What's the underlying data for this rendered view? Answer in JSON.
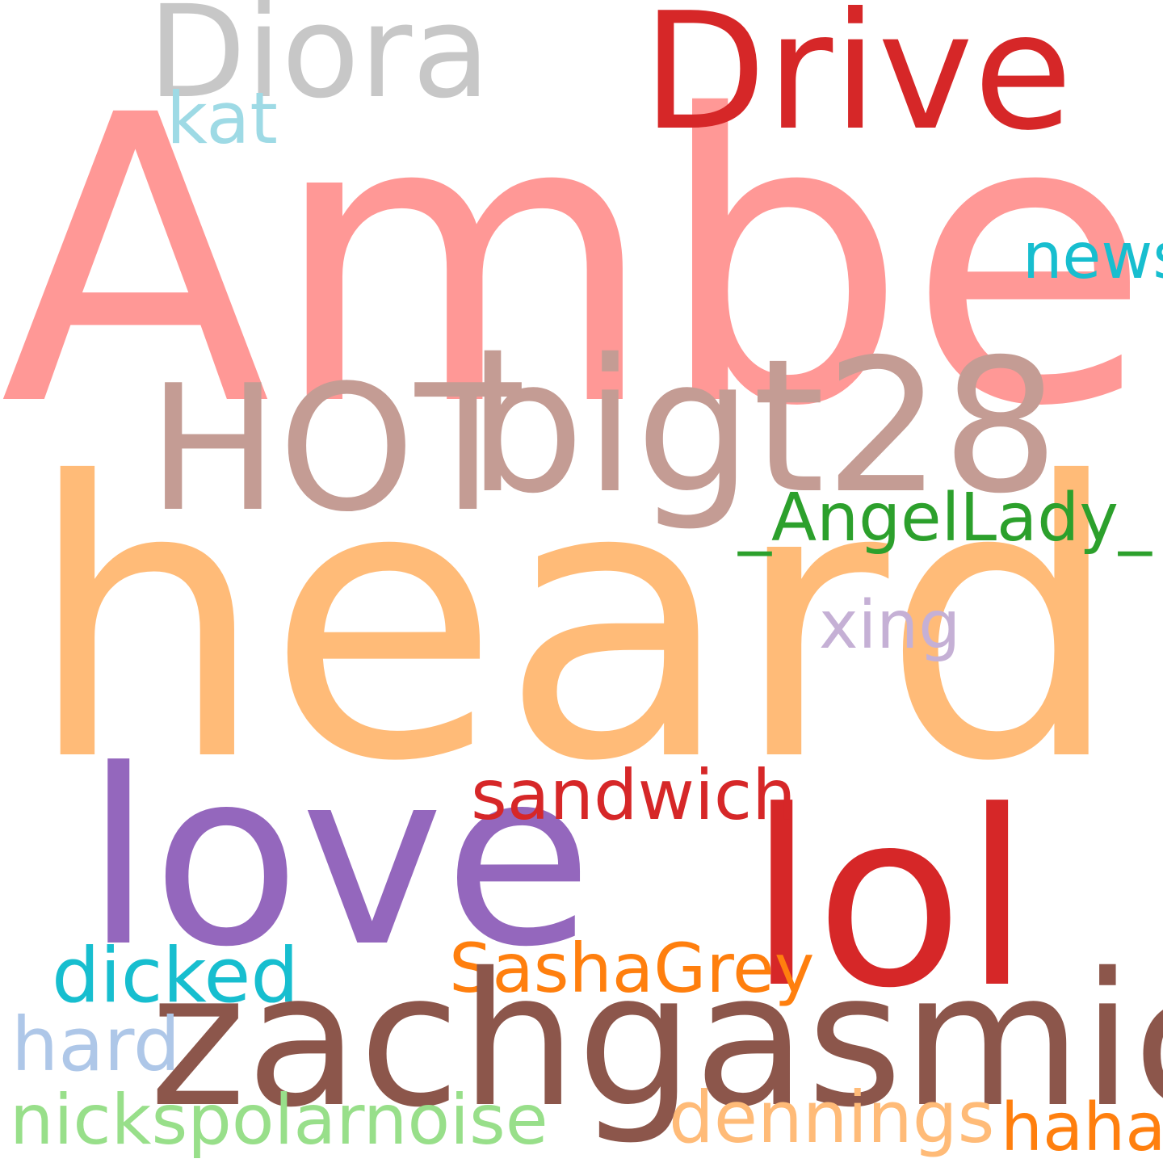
{
  "words": [
    {
      "text": "Amber",
      "color": "#ff9896"
    },
    {
      "text": "heard",
      "color": "#ffbb78"
    },
    {
      "text": "Drive",
      "color": "#d62728"
    },
    {
      "text": "Diora",
      "color": "#c7c7c7"
    },
    {
      "text": "kat",
      "color": "#9edae5"
    },
    {
      "text": "news",
      "color": "#17becf"
    },
    {
      "text": "HOT",
      "color": "#c49c94"
    },
    {
      "text": "bigt28",
      "color": "#c49c94"
    },
    {
      "text": "_AngelLady_",
      "color": "#2ca02c"
    },
    {
      "text": "xing",
      "color": "#c5b0d5"
    },
    {
      "text": "love",
      "color": "#9467bd"
    },
    {
      "text": "lol",
      "color": "#d62728"
    },
    {
      "text": "sandwich",
      "color": "#d62728"
    },
    {
      "text": "SashaGrey",
      "color": "#ff7f0e"
    },
    {
      "text": "dicked",
      "color": "#17becf"
    },
    {
      "text": "zachgasmic",
      "color": "#8c564b"
    },
    {
      "text": "hard",
      "color": "#aec7e8"
    },
    {
      "text": "nickspolarnoise",
      "color": "#98df8a"
    },
    {
      "text": "dennings",
      "color": "#ffbb78"
    },
    {
      "text": "haha",
      "color": "#ff7f0e"
    }
  ]
}
